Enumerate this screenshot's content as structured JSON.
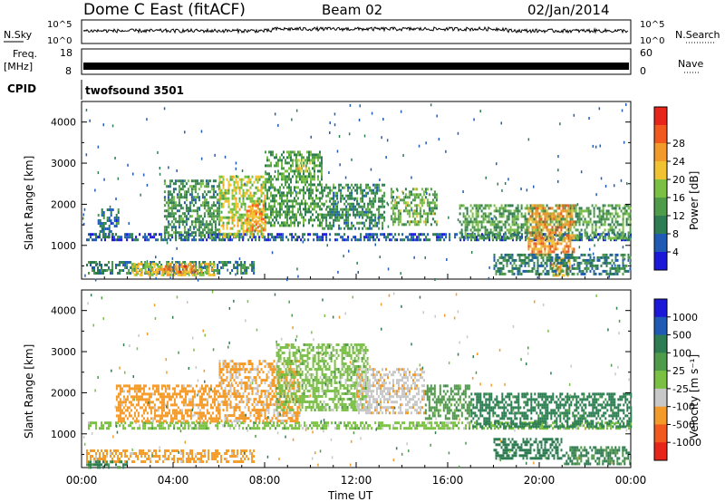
{
  "header": {
    "station": "Dome C East (fitACF)",
    "beam": "Beam 02",
    "date": "02/Jan/2014"
  },
  "nsky_panel": {
    "left_label": "N.Sky",
    "right_label": "N.Search",
    "tick_top": "10^5",
    "tick_bottom": "10^0",
    "right_tick_top": "10^5",
    "right_tick_bottom": "10^0"
  },
  "freq_panel": {
    "left_label_1": "Freq.",
    "left_label_2": "[MHz]",
    "left_tick_top": "18",
    "left_tick_bottom": "8",
    "right_tick_top": "60",
    "right_tick_bottom": "0",
    "right_label": "Nave"
  },
  "cpid": {
    "label": "CPID",
    "value": "twofsound 3501"
  },
  "chart_data": [
    {
      "type": "heatmap",
      "name": "Power",
      "ylabel": "Slant Range [km]",
      "ylim": [
        180,
        4500
      ],
      "yticks": [
        "1000",
        "2000",
        "3000",
        "4000"
      ],
      "colorbar_label": "Power [dB]",
      "colorbar_ticks": [
        "4",
        "8",
        "12",
        "16",
        "20",
        "24",
        "28"
      ],
      "colors": [
        "#1c18d8",
        "#1f5bb5",
        "#2e7d52",
        "#4e9b4a",
        "#7ac143",
        "#f1c232",
        "#f29b2a",
        "#f1591f",
        "#e8251b"
      ],
      "patches": [
        {
          "h0": 0.2,
          "h1": 7.5,
          "r0": 300,
          "r1": 620,
          "v": 10
        },
        {
          "h0": 2.2,
          "h1": 5.8,
          "r0": 280,
          "r1": 580,
          "v": 22
        },
        {
          "h0": 3.5,
          "h1": 5.0,
          "r0": 330,
          "r1": 520,
          "v": 28
        },
        {
          "h0": 0.2,
          "h1": 24,
          "r0": 1150,
          "r1": 1300,
          "v": 6
        },
        {
          "h0": 0.7,
          "h1": 1.6,
          "r0": 1200,
          "r1": 1900,
          "v": 8
        },
        {
          "h0": 3.6,
          "h1": 6.0,
          "r0": 1200,
          "r1": 2600,
          "v": 12
        },
        {
          "h0": 6.0,
          "h1": 8.0,
          "r0": 1200,
          "r1": 2700,
          "v": 20
        },
        {
          "h0": 7.2,
          "h1": 8.0,
          "r0": 1400,
          "r1": 2000,
          "v": 26
        },
        {
          "h0": 8.0,
          "h1": 10.5,
          "r0": 1500,
          "r1": 3300,
          "v": 14
        },
        {
          "h0": 9.3,
          "h1": 10.0,
          "r0": 2800,
          "r1": 3100,
          "v": 20
        },
        {
          "h0": 10.5,
          "h1": 13.2,
          "r0": 1400,
          "r1": 2500,
          "v": 12
        },
        {
          "h0": 13.5,
          "h1": 15.5,
          "r0": 1500,
          "r1": 2400,
          "v": 16
        },
        {
          "h0": 16.5,
          "h1": 24,
          "r0": 1200,
          "r1": 2000,
          "v": 14
        },
        {
          "h0": 19.5,
          "h1": 21.5,
          "r0": 800,
          "r1": 2000,
          "v": 26
        },
        {
          "h0": 20.5,
          "h1": 21.3,
          "r0": 300,
          "r1": 700,
          "v": 24
        },
        {
          "h0": 18.0,
          "h1": 24,
          "r0": 300,
          "r1": 800,
          "v": 10
        }
      ]
    },
    {
      "type": "heatmap",
      "name": "Velocity",
      "ylabel": "Slant Range [km]",
      "ylim": [
        180,
        4500
      ],
      "yticks": [
        "1000",
        "2000",
        "3000",
        "4000"
      ],
      "xlabel": "Time UT",
      "xticks": [
        "00:00",
        "04:00",
        "08:00",
        "12:00",
        "16:00",
        "20:00",
        "00:00"
      ],
      "colorbar_label": "Velocity [m s⁻¹]",
      "colorbar_ticks": [
        "1000",
        "500",
        "100",
        "25",
        "-25",
        "-100",
        "-500",
        "-1000"
      ],
      "colors": [
        "#1c18d8",
        "#1f5bb5",
        "#2e7d52",
        "#4e9b4a",
        "#7ac143",
        "#c8c8c8",
        "#f29b2a",
        "#f1591f",
        "#e8251b"
      ],
      "patches": [
        {
          "h0": 0.2,
          "h1": 7.5,
          "r0": 300,
          "r1": 620,
          "v": -150
        },
        {
          "h0": 0.2,
          "h1": 2.0,
          "r0": 200,
          "r1": 350,
          "v": 120
        },
        {
          "h0": 0.2,
          "h1": 24,
          "r0": 1150,
          "r1": 1300,
          "v": 0
        },
        {
          "h0": 1.5,
          "h1": 6.0,
          "r0": 1300,
          "r1": 2200,
          "v": -150
        },
        {
          "h0": 6.0,
          "h1": 9.5,
          "r0": 1300,
          "r1": 2800,
          "v": -120
        },
        {
          "h0": 8.5,
          "h1": 12.5,
          "r0": 1600,
          "r1": 3200,
          "v": 0
        },
        {
          "h0": 12.0,
          "h1": 15.0,
          "r0": 1500,
          "r1": 2600,
          "v": -80
        },
        {
          "h0": 15.0,
          "h1": 17.0,
          "r0": 1400,
          "r1": 2200,
          "v": 60
        },
        {
          "h0": 17.0,
          "h1": 24,
          "r0": 1200,
          "r1": 2000,
          "v": 150
        },
        {
          "h0": 18.0,
          "h1": 21.0,
          "r0": 400,
          "r1": 900,
          "v": 300
        },
        {
          "h0": 21.0,
          "h1": 24,
          "r0": 300,
          "r1": 700,
          "v": 110
        }
      ]
    }
  ]
}
